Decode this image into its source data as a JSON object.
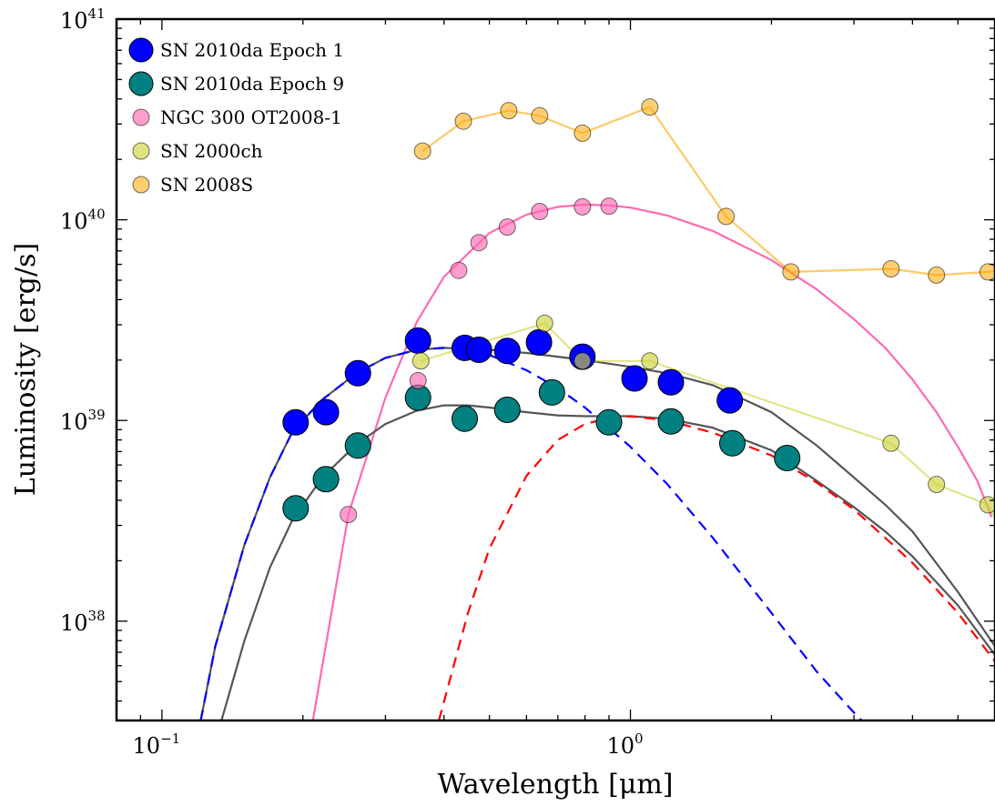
{
  "chart_data": {
    "type": "scatter",
    "title": "",
    "xlabel": "Wavelength [μm]",
    "ylabel": "Luminosity [erg/s]",
    "xscale": "log",
    "yscale": "log",
    "xlim": [
      0.08,
      6.0
    ],
    "ylim": [
      3.2e+37,
      1e+41
    ],
    "xticks": [
      {
        "value": 0.1,
        "base": "10",
        "exp": "−1"
      },
      {
        "value": 1,
        "base": "10",
        "exp": "0"
      }
    ],
    "yticks": [
      {
        "value": 1e+38,
        "base": "10",
        "exp": "38"
      },
      {
        "value": 1e+39,
        "base": "10",
        "exp": "39"
      },
      {
        "value": 1e+40,
        "base": "10",
        "exp": "40"
      },
      {
        "value": 1e+41,
        "base": "10",
        "exp": "41"
      }
    ],
    "grid": false,
    "legend_position": "top-left",
    "series": [
      {
        "name": "SN 2010da Epoch 1",
        "color": "#0000ff",
        "marker": "large",
        "opacity": 1.0,
        "points": [
          [
            0.193,
            9.8e+38
          ],
          [
            0.224,
            1.1e+39
          ],
          [
            0.262,
            1.72e+39
          ],
          [
            0.352,
            2.5e+39
          ],
          [
            0.443,
            2.3e+39
          ],
          [
            0.475,
            2.25e+39
          ],
          [
            0.546,
            2.22e+39
          ],
          [
            0.638,
            2.45e+39
          ],
          [
            0.79,
            2.08e+39
          ],
          [
            1.02,
            1.62e+39
          ],
          [
            1.22,
            1.55e+39
          ],
          [
            1.63,
            1.26e+39
          ]
        ]
      },
      {
        "name": "SN 2010da Epoch 9",
        "color": "#008080",
        "marker": "large",
        "opacity": 1.0,
        "points": [
          [
            0.193,
            3.65e+38
          ],
          [
            0.224,
            5.1e+38
          ],
          [
            0.262,
            7.5e+38
          ],
          [
            0.352,
            1.3e+39
          ],
          [
            0.443,
            1.02e+39
          ],
          [
            0.546,
            1.13e+39
          ],
          [
            0.68,
            1.38e+39
          ],
          [
            0.9,
            9.8e+38
          ],
          [
            1.22,
            9.9e+38
          ],
          [
            1.65,
            7.7e+38
          ],
          [
            2.16,
            6.5e+38
          ]
        ]
      },
      {
        "name": "NGC 300 OT2008-1",
        "color": "#ff69b4",
        "marker": "small",
        "opacity": 0.65,
        "points": [
          [
            0.25,
            3.4e+38
          ],
          [
            0.352,
            1.58e+39
          ],
          [
            0.43,
            5.6e+39
          ],
          [
            0.475,
            7.7e+39
          ],
          [
            0.546,
            9.2e+39
          ],
          [
            0.64,
            1.1e+40
          ],
          [
            0.79,
            1.16e+40
          ],
          [
            0.9,
            1.17e+40
          ]
        ]
      },
      {
        "name": "SN 2000ch",
        "color": "#cdd23c",
        "marker": "small",
        "opacity": 0.65,
        "points": [
          [
            0.357,
            1.98e+39
          ],
          [
            0.656,
            3.05e+39
          ],
          [
            0.79,
            1.98e+39
          ],
          [
            1.1,
            1.98e+39
          ],
          [
            3.6,
            7.7e+38
          ],
          [
            4.5,
            4.8e+38
          ],
          [
            5.8,
            3.8e+38
          ]
        ],
        "line": [
          [
            0.357,
            1.98e+39
          ],
          [
            0.656,
            3.05e+39
          ],
          [
            0.79,
            1.98e+39
          ],
          [
            1.1,
            1.98e+39
          ],
          [
            3.6,
            7.7e+38
          ],
          [
            4.5,
            4.8e+38
          ],
          [
            5.8,
            3.8e+38
          ],
          [
            6.5,
            2.3e+38
          ]
        ]
      },
      {
        "name": "SN 2008S",
        "color": "#ffa500",
        "marker": "small",
        "opacity": 0.55,
        "points": [
          [
            0.36,
            2.2e+40
          ],
          [
            0.44,
            3.1e+40
          ],
          [
            0.55,
            3.5e+40
          ],
          [
            0.64,
            3.3e+40
          ],
          [
            0.79,
            2.7e+40
          ],
          [
            1.1,
            3.65e+40
          ],
          [
            1.6,
            1.04e+40
          ],
          [
            2.2,
            5.5e+39
          ],
          [
            3.6,
            5.7e+39
          ],
          [
            4.5,
            5.3e+39
          ],
          [
            5.8,
            5.5e+39
          ]
        ],
        "line": [
          [
            0.36,
            2.2e+40
          ],
          [
            0.44,
            3.1e+40
          ],
          [
            0.55,
            3.5e+40
          ],
          [
            0.64,
            3.3e+40
          ],
          [
            0.79,
            2.7e+40
          ],
          [
            1.1,
            3.65e+40
          ],
          [
            1.6,
            1.04e+40
          ],
          [
            2.2,
            5.5e+39
          ],
          [
            3.6,
            5.7e+39
          ],
          [
            4.5,
            5.3e+39
          ],
          [
            5.8,
            5.5e+39
          ],
          [
            6.5,
            5.7e+39
          ]
        ]
      }
    ],
    "curves": [
      {
        "color": "#ff69b4",
        "style": "solid",
        "points": [
          [
            0.21,
            3.2e+37
          ],
          [
            0.25,
            3.4e+38
          ],
          [
            0.3,
            1.3e+39
          ],
          [
            0.35,
            3.1e+39
          ],
          [
            0.4,
            5.2e+39
          ],
          [
            0.5,
            8.6e+39
          ],
          [
            0.6,
            1.06e+40
          ],
          [
            0.7,
            1.16e+40
          ],
          [
            0.8,
            1.19e+40
          ],
          [
            0.9,
            1.18e+40
          ],
          [
            1.0,
            1.15e+40
          ],
          [
            1.2,
            1.05e+40
          ],
          [
            1.5,
            8.8e+39
          ],
          [
            2.0,
            6.3e+39
          ],
          [
            2.5,
            4.5e+39
          ],
          [
            3.0,
            3.2e+39
          ],
          [
            3.5,
            2.3e+39
          ],
          [
            4.0,
            1.6e+39
          ],
          [
            4.5,
            1.1e+39
          ],
          [
            5.0,
            7.4e+38
          ],
          [
            5.5,
            5e+38
          ],
          [
            5.9,
            3.3e+38
          ]
        ]
      },
      {
        "color": "#555555",
        "style": "solid",
        "points": [
          [
            0.121,
            3.2e+37
          ],
          [
            0.13,
            7.5e+37
          ],
          [
            0.15,
            2.4e+38
          ],
          [
            0.17,
            5.2e+38
          ],
          [
            0.19,
            8.8e+38
          ],
          [
            0.22,
            1.27e+39
          ],
          [
            0.26,
            1.72e+39
          ],
          [
            0.3,
            2.05e+39
          ],
          [
            0.35,
            2.25e+39
          ],
          [
            0.4,
            2.3e+39
          ],
          [
            0.5,
            2.25e+39
          ],
          [
            0.6,
            2.17e+39
          ],
          [
            0.7,
            2.08e+39
          ],
          [
            0.8,
            2e+39
          ],
          [
            1.0,
            1.85e+39
          ],
          [
            1.2,
            1.72e+39
          ],
          [
            1.5,
            1.5e+39
          ],
          [
            2.0,
            1.1e+39
          ],
          [
            2.5,
            7.5e+38
          ],
          [
            3.0,
            5.2e+38
          ],
          [
            3.5,
            3.8e+38
          ],
          [
            4.0,
            2.8e+38
          ],
          [
            5.0,
            1.4e+38
          ],
          [
            6.0,
            7.5e+37
          ],
          [
            6.5,
            5.6e+37
          ]
        ]
      },
      {
        "color": "#555555",
        "style": "solid",
        "points": [
          [
            0.134,
            3.2e+37
          ],
          [
            0.15,
            8e+37
          ],
          [
            0.17,
            1.85e+38
          ],
          [
            0.19,
            3.2e+38
          ],
          [
            0.22,
            5.2e+38
          ],
          [
            0.26,
            7.6e+38
          ],
          [
            0.3,
            9.6e+38
          ],
          [
            0.35,
            1.12e+39
          ],
          [
            0.4,
            1.19e+39
          ],
          [
            0.45,
            1.19e+39
          ],
          [
            0.5,
            1.16e+39
          ],
          [
            0.6,
            1.1e+39
          ],
          [
            0.7,
            1.06e+39
          ],
          [
            0.8,
            1.05e+39
          ],
          [
            1.0,
            1.05e+39
          ],
          [
            1.2,
            1.02e+39
          ],
          [
            1.5,
            9.2e+38
          ],
          [
            2.0,
            7.1e+38
          ],
          [
            2.5,
            5e+38
          ],
          [
            3.0,
            3.7e+38
          ],
          [
            3.5,
            2.8e+38
          ],
          [
            4.0,
            2.1e+38
          ],
          [
            5.0,
            1.2e+38
          ],
          [
            6.0,
            6.8e+37
          ],
          [
            6.5,
            5.2e+37
          ]
        ]
      },
      {
        "color": "#0000ff",
        "style": "dashed",
        "points": [
          [
            0.121,
            3.2e+37
          ],
          [
            0.13,
            7.5e+37
          ],
          [
            0.15,
            2.4e+38
          ],
          [
            0.17,
            5.2e+38
          ],
          [
            0.19,
            8.8e+38
          ],
          [
            0.22,
            1.27e+39
          ],
          [
            0.26,
            1.72e+39
          ],
          [
            0.3,
            2.05e+39
          ],
          [
            0.35,
            2.25e+39
          ],
          [
            0.4,
            2.3e+39
          ],
          [
            0.45,
            2.26e+39
          ],
          [
            0.5,
            2.12e+39
          ],
          [
            0.6,
            1.78e+39
          ],
          [
            0.7,
            1.45e+39
          ],
          [
            0.8,
            1.16e+39
          ],
          [
            1.0,
            7.4e+38
          ],
          [
            1.2,
            4.8e+38
          ],
          [
            1.5,
            2.6e+38
          ],
          [
            2.0,
            1.1e+38
          ],
          [
            2.5,
            5.6e+37
          ],
          [
            3.0,
            3.5e+37
          ],
          [
            3.2,
            3e+37
          ]
        ]
      },
      {
        "color": "#ff0000",
        "style": "dashed",
        "points": [
          [
            0.39,
            3.2e+37
          ],
          [
            0.45,
            1.1e+38
          ],
          [
            0.5,
            2.3e+38
          ],
          [
            0.6,
            5.3e+38
          ],
          [
            0.7,
            8e+38
          ],
          [
            0.8,
            9.6e+38
          ],
          [
            0.9,
            1.03e+39
          ],
          [
            1.0,
            1.05e+39
          ],
          [
            1.2,
            1e+39
          ],
          [
            1.5,
            8.7e+38
          ],
          [
            2.0,
            6.7e+38
          ],
          [
            2.5,
            4.9e+38
          ],
          [
            3.0,
            3.6e+38
          ],
          [
            3.5,
            2.6e+38
          ],
          [
            4.0,
            1.95e+38
          ],
          [
            5.0,
            1.1e+38
          ],
          [
            6.0,
            6.3e+37
          ],
          [
            6.5,
            4.9e+37
          ]
        ]
      }
    ]
  }
}
